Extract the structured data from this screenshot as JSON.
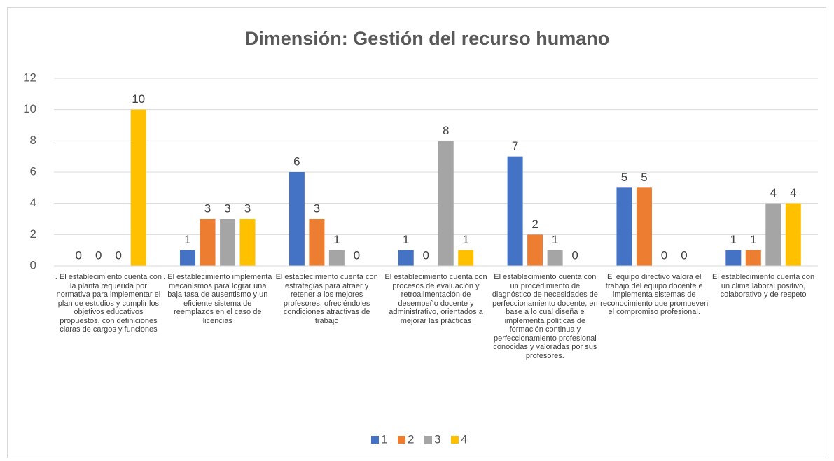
{
  "chart_data": {
    "type": "bar",
    "title": "Dimensión: Gestión del recurso humano",
    "categories": [
      ". El establecimiento cuenta con la planta requerida por normativa para implementar el plan de estudios y cumplir los objetivos educativos propuestos, con definiciones claras de cargos y funciones",
      ". El establecimiento implementa mecanismos para lograr una baja tasa de ausentismo y un eficiente sistema de reemplazos en el caso de licencias",
      "El establecimiento cuenta con estrategias para atraer y retener a los mejores profesores, ofreciéndoles condiciones atractivas de trabajo",
      "El establecimiento cuenta con procesos de evaluación y retroalimentación de desempeño docente y administrativo, orientados a mejorar las prácticas",
      "El establecimiento cuenta con un procedimiento de diagnóstico de necesidades de perfeccionamiento docente, en base a lo cual diseña e implementa políticas de formación continua y perfeccionamiento profesional conocidas y valoradas por sus profesores.",
      "El equipo directivo valora el trabajo del equipo docente e implementa sistemas de reconocimiento que promueven el compromiso profesional.",
      "El establecimiento cuenta con un clima laboral positivo, colaborativo y de respeto"
    ],
    "series": [
      {
        "name": "1",
        "color": "#4472c4",
        "values": [
          0,
          1,
          6,
          1,
          7,
          5,
          1
        ]
      },
      {
        "name": "2",
        "color": "#ed7d31",
        "values": [
          0,
          3,
          3,
          0,
          2,
          5,
          1
        ]
      },
      {
        "name": "3",
        "color": "#a5a5a5",
        "values": [
          0,
          3,
          1,
          8,
          1,
          0,
          4
        ]
      },
      {
        "name": "4",
        "color": "#ffc000",
        "values": [
          10,
          3,
          0,
          1,
          0,
          0,
          4
        ]
      }
    ],
    "ylim": [
      0,
      12
    ],
    "yticks": [
      0,
      2,
      4,
      6,
      8,
      10,
      12
    ],
    "grid": true,
    "legend": "bottom"
  }
}
